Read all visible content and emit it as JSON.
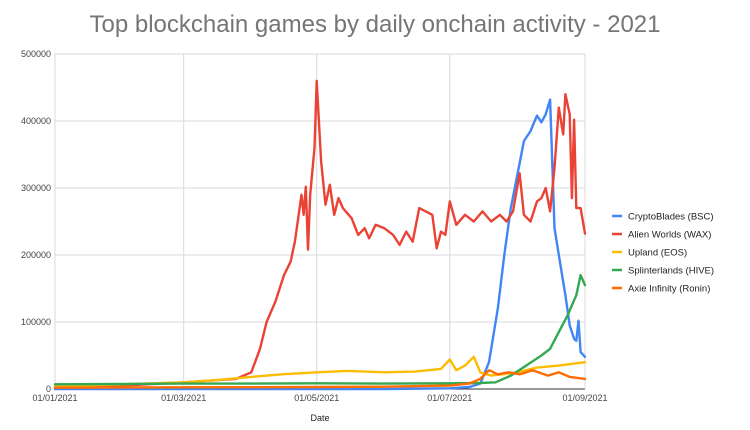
{
  "chart_data": {
    "type": "line",
    "title": "Top blockchain games by daily onchain activity - 2021",
    "xlabel": "Date",
    "ylabel": "",
    "x_range": [
      "2021-01-01",
      "2021-09-01"
    ],
    "ylim": [
      0,
      500000
    ],
    "y_ticks": [
      "0",
      "100000",
      "200000",
      "300000",
      "400000",
      "500000"
    ],
    "x_ticks": [
      {
        "date": "2021-01-01",
        "label": "01/01/2021"
      },
      {
        "date": "2021-03-01",
        "label": "01/03/2021"
      },
      {
        "date": "2021-05-01",
        "label": "01/05/2021"
      },
      {
        "date": "2021-07-01",
        "label": "01/07/2021"
      },
      {
        "date": "2021-09-01",
        "label": "01/09/2021"
      }
    ],
    "grid": true,
    "legend_position": "right",
    "series": [
      {
        "name": "CryptoBlades (BSC)",
        "color": "#4285F4",
        "points": [
          [
            "2021-01-01",
            0
          ],
          [
            "2021-06-01",
            0
          ],
          [
            "2021-07-01",
            1000
          ],
          [
            "2021-07-10",
            3000
          ],
          [
            "2021-07-15",
            8000
          ],
          [
            "2021-07-19",
            40000
          ],
          [
            "2021-07-23",
            120000
          ],
          [
            "2021-07-26",
            200000
          ],
          [
            "2021-07-29",
            270000
          ],
          [
            "2021-08-01",
            320000
          ],
          [
            "2021-08-04",
            370000
          ],
          [
            "2021-08-07",
            385000
          ],
          [
            "2021-08-10",
            408000
          ],
          [
            "2021-08-12",
            398000
          ],
          [
            "2021-08-14",
            410000
          ],
          [
            "2021-08-16",
            432000
          ],
          [
            "2021-08-18",
            240000
          ],
          [
            "2021-08-21",
            180000
          ],
          [
            "2021-08-23",
            140000
          ],
          [
            "2021-08-25",
            95000
          ],
          [
            "2021-08-27",
            75000
          ],
          [
            "2021-08-28",
            72000
          ],
          [
            "2021-08-29",
            102000
          ],
          [
            "2021-08-30",
            55000
          ],
          [
            "2021-09-01",
            48000
          ]
        ]
      },
      {
        "name": "Alien Worlds (WAX)",
        "color": "#EA4335",
        "points": [
          [
            "2021-01-01",
            3000
          ],
          [
            "2021-02-01",
            5000
          ],
          [
            "2021-03-01",
            10000
          ],
          [
            "2021-03-25",
            15000
          ],
          [
            "2021-04-01",
            25000
          ],
          [
            "2021-04-05",
            60000
          ],
          [
            "2021-04-08",
            100000
          ],
          [
            "2021-04-12",
            130000
          ],
          [
            "2021-04-16",
            170000
          ],
          [
            "2021-04-19",
            190000
          ],
          [
            "2021-04-21",
            220000
          ],
          [
            "2021-04-24",
            290000
          ],
          [
            "2021-04-25",
            260000
          ],
          [
            "2021-04-26",
            302000
          ],
          [
            "2021-04-27",
            208000
          ],
          [
            "2021-04-28",
            290000
          ],
          [
            "2021-04-30",
            360000
          ],
          [
            "2021-05-01",
            460000
          ],
          [
            "2021-05-02",
            400000
          ],
          [
            "2021-05-03",
            340000
          ],
          [
            "2021-05-05",
            275000
          ],
          [
            "2021-05-07",
            305000
          ],
          [
            "2021-05-09",
            260000
          ],
          [
            "2021-05-11",
            285000
          ],
          [
            "2021-05-13",
            270000
          ],
          [
            "2021-05-17",
            255000
          ],
          [
            "2021-05-20",
            230000
          ],
          [
            "2021-05-23",
            240000
          ],
          [
            "2021-05-25",
            225000
          ],
          [
            "2021-05-28",
            245000
          ],
          [
            "2021-06-01",
            240000
          ],
          [
            "2021-06-05",
            230000
          ],
          [
            "2021-06-08",
            215000
          ],
          [
            "2021-06-11",
            235000
          ],
          [
            "2021-06-14",
            220000
          ],
          [
            "2021-06-17",
            270000
          ],
          [
            "2021-06-20",
            265000
          ],
          [
            "2021-06-23",
            260000
          ],
          [
            "2021-06-25",
            210000
          ],
          [
            "2021-06-27",
            235000
          ],
          [
            "2021-06-29",
            230000
          ],
          [
            "2021-07-01",
            280000
          ],
          [
            "2021-07-04",
            245000
          ],
          [
            "2021-07-08",
            260000
          ],
          [
            "2021-07-12",
            250000
          ],
          [
            "2021-07-16",
            265000
          ],
          [
            "2021-07-20",
            250000
          ],
          [
            "2021-07-24",
            260000
          ],
          [
            "2021-07-27",
            250000
          ],
          [
            "2021-07-30",
            265000
          ],
          [
            "2021-08-02",
            322000
          ],
          [
            "2021-08-04",
            260000
          ],
          [
            "2021-08-07",
            250000
          ],
          [
            "2021-08-10",
            280000
          ],
          [
            "2021-08-12",
            285000
          ],
          [
            "2021-08-14",
            300000
          ],
          [
            "2021-08-16",
            265000
          ],
          [
            "2021-08-18",
            330000
          ],
          [
            "2021-08-20",
            420000
          ],
          [
            "2021-08-22",
            380000
          ],
          [
            "2021-08-23",
            440000
          ],
          [
            "2021-08-25",
            410000
          ],
          [
            "2021-08-26",
            285000
          ],
          [
            "2021-08-27",
            402000
          ],
          [
            "2021-08-28",
            270000
          ],
          [
            "2021-08-30",
            270000
          ],
          [
            "2021-09-01",
            232000
          ]
        ]
      },
      {
        "name": "Upland (EOS)",
        "color": "#FBBC04",
        "points": [
          [
            "2021-01-01",
            4000
          ],
          [
            "2021-02-01",
            7000
          ],
          [
            "2021-03-01",
            10000
          ],
          [
            "2021-03-15",
            13000
          ],
          [
            "2021-04-01",
            18000
          ],
          [
            "2021-04-15",
            22000
          ],
          [
            "2021-05-01",
            25000
          ],
          [
            "2021-05-15",
            27000
          ],
          [
            "2021-06-01",
            25000
          ],
          [
            "2021-06-15",
            26000
          ],
          [
            "2021-06-27",
            30000
          ],
          [
            "2021-07-01",
            44000
          ],
          [
            "2021-07-04",
            28000
          ],
          [
            "2021-07-08",
            35000
          ],
          [
            "2021-07-12",
            48000
          ],
          [
            "2021-07-15",
            25000
          ],
          [
            "2021-07-20",
            20000
          ],
          [
            "2021-07-25",
            22000
          ],
          [
            "2021-08-01",
            25000
          ],
          [
            "2021-08-10",
            32000
          ],
          [
            "2021-08-20",
            35000
          ],
          [
            "2021-09-01",
            40000
          ]
        ]
      },
      {
        "name": "Splinterlands  (HIVE)",
        "color": "#34A853",
        "points": [
          [
            "2021-01-01",
            7000
          ],
          [
            "2021-02-01",
            7500
          ],
          [
            "2021-03-01",
            8000
          ],
          [
            "2021-04-01",
            8000
          ],
          [
            "2021-05-01",
            8500
          ],
          [
            "2021-06-01",
            8000
          ],
          [
            "2021-07-01",
            8500
          ],
          [
            "2021-07-15",
            9000
          ],
          [
            "2021-07-22",
            10000
          ],
          [
            "2021-07-29",
            20000
          ],
          [
            "2021-08-05",
            35000
          ],
          [
            "2021-08-12",
            50000
          ],
          [
            "2021-08-16",
            60000
          ],
          [
            "2021-08-20",
            85000
          ],
          [
            "2021-08-24",
            110000
          ],
          [
            "2021-08-28",
            140000
          ],
          [
            "2021-08-30",
            170000
          ],
          [
            "2021-09-01",
            155000
          ]
        ]
      },
      {
        "name": "Axie Infinity (Ronin)",
        "color": "#FF6D01",
        "points": [
          [
            "2021-01-01",
            2000
          ],
          [
            "2021-03-01",
            2500
          ],
          [
            "2021-05-01",
            3000
          ],
          [
            "2021-06-01",
            3500
          ],
          [
            "2021-07-01",
            5000
          ],
          [
            "2021-07-10",
            8000
          ],
          [
            "2021-07-15",
            15000
          ],
          [
            "2021-07-19",
            28000
          ],
          [
            "2021-07-23",
            22000
          ],
          [
            "2021-07-28",
            25000
          ],
          [
            "2021-08-02",
            22000
          ],
          [
            "2021-08-08",
            28000
          ],
          [
            "2021-08-15",
            20000
          ],
          [
            "2021-08-20",
            25000
          ],
          [
            "2021-08-25",
            18000
          ],
          [
            "2021-09-01",
            15000
          ]
        ]
      }
    ]
  }
}
